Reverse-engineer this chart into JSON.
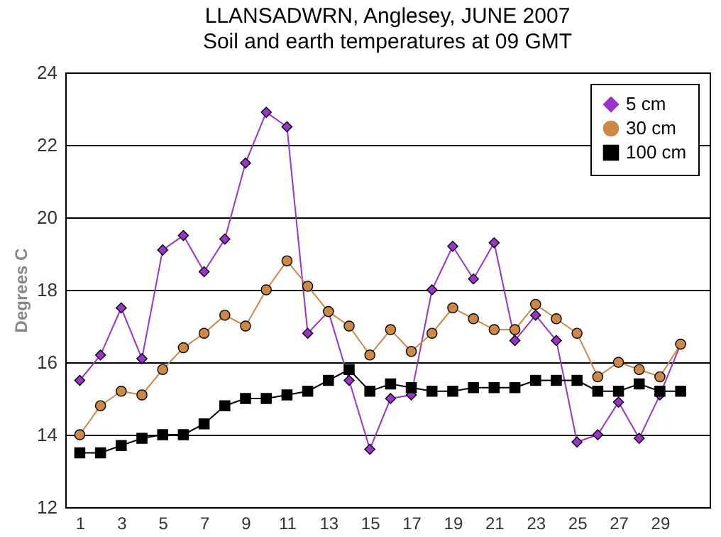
{
  "chart_data": {
    "type": "line",
    "title": "LLANSADWRN, Anglesey, JUNE 2007",
    "subtitle": "Soil and earth temperatures at 09 GMT",
    "ylabel": "Degrees C",
    "x": [
      1,
      2,
      3,
      4,
      5,
      6,
      7,
      8,
      9,
      10,
      11,
      12,
      13,
      14,
      15,
      16,
      17,
      18,
      19,
      20,
      21,
      22,
      23,
      24,
      25,
      26,
      27,
      28,
      29,
      30
    ],
    "xlim": [
      0.3,
      31.4
    ],
    "xticks": [
      1,
      3,
      5,
      7,
      9,
      11,
      13,
      15,
      17,
      19,
      21,
      23,
      25,
      27,
      29
    ],
    "ylim": [
      12,
      24
    ],
    "yticks": [
      12,
      14,
      16,
      18,
      20,
      22,
      24
    ],
    "grid": "y",
    "legend": "top right",
    "series": [
      {
        "name": "5 cm",
        "color": "#9933cc",
        "marker": "diamond",
        "values": [
          15.5,
          16.2,
          17.5,
          16.1,
          19.1,
          19.5,
          18.5,
          19.4,
          21.5,
          22.9,
          22.5,
          16.8,
          17.4,
          15.5,
          13.6,
          15.0,
          15.1,
          18.0,
          19.2,
          18.3,
          19.3,
          16.6,
          17.3,
          16.6,
          13.8,
          14.0,
          14.9,
          13.9,
          15.1,
          16.5
        ]
      },
      {
        "name": "30 cm",
        "color": "#cc8844",
        "marker": "circle",
        "values": [
          14.0,
          14.8,
          15.2,
          15.1,
          15.8,
          16.4,
          16.8,
          17.3,
          17.0,
          18.0,
          18.8,
          18.1,
          17.4,
          17.0,
          16.2,
          16.9,
          16.3,
          16.8,
          17.5,
          17.2,
          16.9,
          16.9,
          17.6,
          17.2,
          16.8,
          15.6,
          16.0,
          15.8,
          15.6,
          16.5
        ]
      },
      {
        "name": "100 cm",
        "color": "#000000",
        "marker": "square",
        "values": [
          13.5,
          13.5,
          13.7,
          13.9,
          14.0,
          14.0,
          14.3,
          14.8,
          15.0,
          15.0,
          15.1,
          15.2,
          15.5,
          15.8,
          15.2,
          15.4,
          15.3,
          15.2,
          15.2,
          15.3,
          15.3,
          15.3,
          15.5,
          15.5,
          15.5,
          15.2,
          15.2,
          15.4,
          15.2,
          15.2
        ]
      }
    ]
  }
}
